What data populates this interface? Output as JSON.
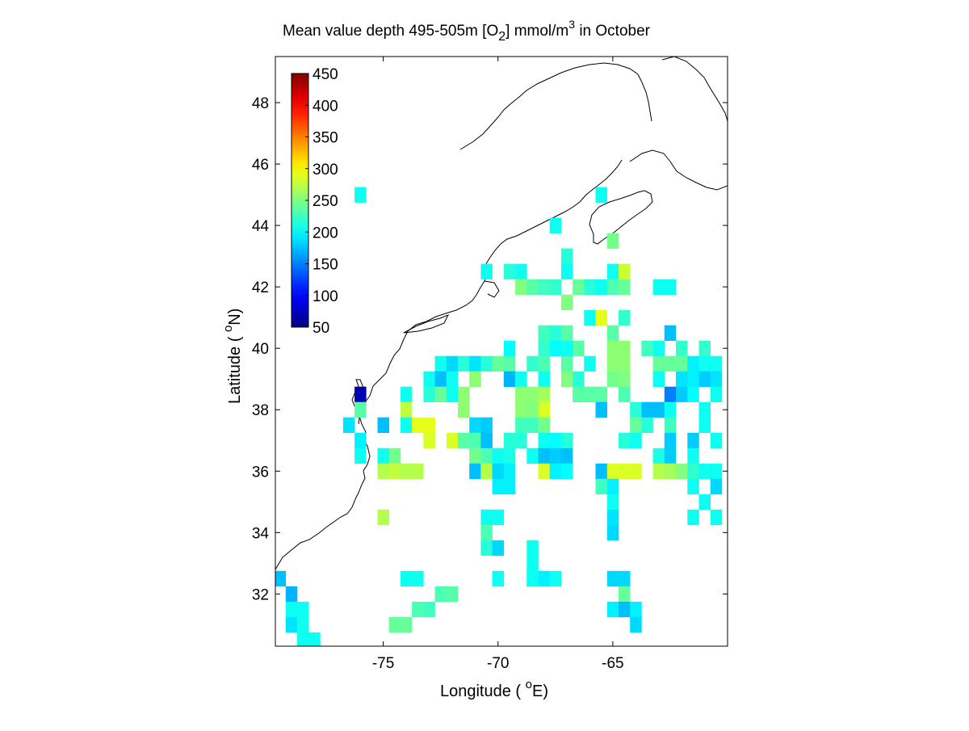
{
  "chart_data": {
    "type": "heatmap",
    "title": {
      "main": "Mean value depth 495-505m [O",
      "sub": "2",
      "unit_pre": "] mmol/m",
      "sup": "3",
      "unit_post": " in October"
    },
    "xlabel": {
      "pre": "Longitude ( ",
      "deg": "o",
      "post": "E)"
    },
    "ylabel": {
      "pre": "Latitude ( ",
      "deg": "o",
      "post": "N)"
    },
    "xlim": [
      -79.7,
      -60
    ],
    "ylim": [
      30.3,
      49.5
    ],
    "xticks": [
      -75,
      -70,
      -65
    ],
    "yticks": [
      32,
      34,
      36,
      38,
      40,
      42,
      44,
      46,
      48
    ],
    "grid": false,
    "cell_size_deg": [
      0.5,
      0.5
    ],
    "colorbar": {
      "placement": "top-left",
      "clim": [
        50,
        450
      ],
      "ticks": [
        50,
        100,
        150,
        200,
        250,
        300,
        350,
        400,
        450
      ],
      "colormap": "jet"
    },
    "cells": [
      [
        -79.5,
        32.5,
        175
      ],
      [
        -79.0,
        32.0,
        170
      ],
      [
        -79.0,
        31.5,
        205
      ],
      [
        -79.0,
        31.0,
        190
      ],
      [
        -78.5,
        31.5,
        205
      ],
      [
        -78.5,
        31.0,
        205
      ],
      [
        -78.5,
        30.5,
        205
      ],
      [
        -78.0,
        30.5,
        205
      ],
      [
        -76.0,
        45.0,
        205
      ],
      [
        -65.5,
        45.0,
        205
      ],
      [
        -65.0,
        43.5,
        245
      ],
      [
        -67.5,
        44.0,
        205
      ],
      [
        -67.0,
        43.0,
        215
      ],
      [
        -70.5,
        42.5,
        205
      ],
      [
        -69.5,
        42.5,
        215
      ],
      [
        -69.0,
        42.5,
        205
      ],
      [
        -67.0,
        42.5,
        205
      ],
      [
        -65.0,
        42.5,
        205
      ],
      [
        -64.5,
        42.5,
        280
      ],
      [
        -69.0,
        42.0,
        250
      ],
      [
        -68.5,
        42.0,
        235
      ],
      [
        -68.0,
        42.0,
        225
      ],
      [
        -67.5,
        42.0,
        220
      ],
      [
        -66.5,
        42.0,
        240
      ],
      [
        -66.0,
        42.0,
        215
      ],
      [
        -65.5,
        42.0,
        205
      ],
      [
        -65.0,
        42.0,
        230
      ],
      [
        -64.5,
        42.0,
        240
      ],
      [
        -63.0,
        42.0,
        205
      ],
      [
        -62.5,
        42.0,
        205
      ],
      [
        -67.0,
        41.5,
        250
      ],
      [
        -66.0,
        41.0,
        205
      ],
      [
        -65.5,
        41.0,
        290
      ],
      [
        -64.5,
        41.0,
        220
      ],
      [
        -68.0,
        40.5,
        225
      ],
      [
        -67.5,
        40.5,
        215
      ],
      [
        -67.0,
        40.5,
        235
      ],
      [
        -65.0,
        40.5,
        235
      ],
      [
        -62.5,
        40.5,
        175
      ],
      [
        -69.5,
        40.0,
        200
      ],
      [
        -68.0,
        40.0,
        220
      ],
      [
        -67.5,
        40.0,
        200
      ],
      [
        -67.0,
        40.0,
        205
      ],
      [
        -66.5,
        40.0,
        235
      ],
      [
        -65.0,
        40.0,
        255
      ],
      [
        -64.5,
        40.0,
        255
      ],
      [
        -63.5,
        40.0,
        225
      ],
      [
        -63.0,
        40.0,
        205
      ],
      [
        -62.0,
        40.0,
        220
      ],
      [
        -61.0,
        40.0,
        220
      ],
      [
        -70.0,
        39.5,
        240
      ],
      [
        -69.5,
        39.5,
        235
      ],
      [
        -68.5,
        39.5,
        220
      ],
      [
        -68.0,
        39.5,
        230
      ],
      [
        -67.0,
        39.5,
        235
      ],
      [
        -66.0,
        39.5,
        205
      ],
      [
        -65.0,
        39.5,
        255
      ],
      [
        -64.5,
        39.5,
        255
      ],
      [
        -63.0,
        39.5,
        240
      ],
      [
        -62.5,
        39.5,
        240
      ],
      [
        -62.0,
        39.5,
        240
      ],
      [
        -61.5,
        39.5,
        195
      ],
      [
        -61.0,
        39.5,
        205
      ],
      [
        -60.5,
        39.5,
        205
      ],
      [
        -72.5,
        39.5,
        205
      ],
      [
        -72.0,
        39.5,
        185
      ],
      [
        -71.5,
        39.5,
        215
      ],
      [
        -71.0,
        39.5,
        190
      ],
      [
        -70.5,
        39.5,
        215
      ],
      [
        -73.0,
        39.0,
        205
      ],
      [
        -72.5,
        39.0,
        175
      ],
      [
        -72.0,
        39.0,
        205
      ],
      [
        -71.0,
        39.0,
        255
      ],
      [
        -69.5,
        39.0,
        170
      ],
      [
        -69.0,
        39.0,
        205
      ],
      [
        -68.0,
        39.0,
        205
      ],
      [
        -67.0,
        39.0,
        250
      ],
      [
        -66.5,
        39.0,
        215
      ],
      [
        -65.0,
        39.0,
        245
      ],
      [
        -64.5,
        39.0,
        250
      ],
      [
        -63.0,
        39.0,
        205
      ],
      [
        -62.0,
        39.0,
        190
      ],
      [
        -61.5,
        39.0,
        195
      ],
      [
        -61.0,
        39.0,
        180
      ],
      [
        -60.5,
        39.0,
        190
      ],
      [
        -74.0,
        38.5,
        205
      ],
      [
        -73.0,
        38.5,
        215
      ],
      [
        -72.5,
        38.5,
        240
      ],
      [
        -72.0,
        38.5,
        205
      ],
      [
        -71.5,
        38.5,
        255
      ],
      [
        -69.0,
        38.5,
        255
      ],
      [
        -68.5,
        38.5,
        255
      ],
      [
        -68.0,
        38.5,
        265
      ],
      [
        -66.5,
        38.5,
        235
      ],
      [
        -66.0,
        38.5,
        235
      ],
      [
        -65.5,
        38.5,
        235
      ],
      [
        -64.5,
        38.5,
        230
      ],
      [
        -62.5,
        38.5,
        150
      ],
      [
        -62.0,
        38.5,
        180
      ],
      [
        -61.5,
        38.5,
        200
      ],
      [
        -60.5,
        38.5,
        205
      ],
      [
        -74.0,
        38.0,
        275
      ],
      [
        -71.5,
        38.0,
        255
      ],
      [
        -69.0,
        38.0,
        255
      ],
      [
        -68.5,
        38.0,
        250
      ],
      [
        -68.0,
        38.0,
        285
      ],
      [
        -65.5,
        38.0,
        175
      ],
      [
        -64.0,
        38.0,
        215
      ],
      [
        -63.5,
        38.0,
        175
      ],
      [
        -63.0,
        38.0,
        175
      ],
      [
        -62.5,
        38.0,
        205
      ],
      [
        -61.0,
        38.0,
        205
      ],
      [
        -75.0,
        37.5,
        175
      ],
      [
        -74.0,
        37.5,
        205
      ],
      [
        -73.5,
        37.5,
        290
      ],
      [
        -73.0,
        37.5,
        290
      ],
      [
        -71.0,
        37.5,
        185
      ],
      [
        -70.5,
        37.5,
        180
      ],
      [
        -69.0,
        37.5,
        225
      ],
      [
        -68.5,
        37.5,
        225
      ],
      [
        -68.0,
        37.5,
        245
      ],
      [
        -64.0,
        37.5,
        240
      ],
      [
        -63.5,
        37.5,
        215
      ],
      [
        -62.5,
        37.5,
        225
      ],
      [
        -61.0,
        37.5,
        205
      ],
      [
        -73.0,
        37.0,
        285
      ],
      [
        -72.0,
        37.0,
        285
      ],
      [
        -71.5,
        37.0,
        235
      ],
      [
        -71.0,
        37.0,
        230
      ],
      [
        -70.5,
        37.0,
        175
      ],
      [
        -69.5,
        37.0,
        215
      ],
      [
        -69.0,
        37.0,
        215
      ],
      [
        -68.0,
        37.0,
        205
      ],
      [
        -67.5,
        37.0,
        200
      ],
      [
        -67.0,
        37.0,
        215
      ],
      [
        -64.5,
        37.0,
        215
      ],
      [
        -64.0,
        37.0,
        205
      ],
      [
        -62.5,
        37.0,
        180
      ],
      [
        -61.5,
        37.0,
        180
      ],
      [
        -60.5,
        37.0,
        205
      ],
      [
        -76.0,
        36.5,
        205
      ],
      [
        -75.0,
        36.5,
        205
      ],
      [
        -74.5,
        36.5,
        245
      ],
      [
        -71.0,
        36.5,
        245
      ],
      [
        -70.5,
        36.5,
        230
      ],
      [
        -70.0,
        36.5,
        205
      ],
      [
        -69.5,
        36.5,
        210
      ],
      [
        -68.5,
        36.5,
        205
      ],
      [
        -68.0,
        36.5,
        175
      ],
      [
        -67.5,
        36.5,
        180
      ],
      [
        -67.0,
        36.5,
        175
      ],
      [
        -63.0,
        36.5,
        210
      ],
      [
        -62.5,
        36.5,
        180
      ],
      [
        -61.5,
        36.5,
        205
      ],
      [
        -75.0,
        36.0,
        270
      ],
      [
        -74.5,
        36.0,
        275
      ],
      [
        -74.0,
        36.0,
        270
      ],
      [
        -73.5,
        36.0,
        270
      ],
      [
        -71.0,
        36.0,
        175
      ],
      [
        -70.5,
        36.0,
        270
      ],
      [
        -70.0,
        36.0,
        185
      ],
      [
        -69.5,
        36.0,
        195
      ],
      [
        -68.0,
        36.0,
        285
      ],
      [
        -67.5,
        36.0,
        195
      ],
      [
        -67.0,
        36.0,
        200
      ],
      [
        -65.5,
        36.0,
        175
      ],
      [
        -65.0,
        36.0,
        285
      ],
      [
        -64.5,
        36.0,
        285
      ],
      [
        -64.0,
        36.0,
        285
      ],
      [
        -63.0,
        36.0,
        270
      ],
      [
        -62.5,
        36.0,
        265
      ],
      [
        -62.0,
        36.0,
        250
      ],
      [
        -61.5,
        36.0,
        220
      ],
      [
        -61.0,
        36.0,
        205
      ],
      [
        -60.5,
        36.0,
        205
      ],
      [
        -70.0,
        35.5,
        195
      ],
      [
        -69.5,
        35.5,
        195
      ],
      [
        -65.5,
        35.5,
        225
      ],
      [
        -65.0,
        35.5,
        195
      ],
      [
        -61.5,
        35.5,
        205
      ],
      [
        -60.5,
        35.5,
        185
      ],
      [
        -65.0,
        35.0,
        205
      ],
      [
        -61.0,
        35.0,
        205
      ],
      [
        -61.5,
        34.5,
        205
      ],
      [
        -60.5,
        34.5,
        205
      ],
      [
        -75.0,
        34.5,
        270
      ],
      [
        -70.5,
        34.5,
        205
      ],
      [
        -70.0,
        34.5,
        205
      ],
      [
        -65.0,
        34.5,
        190
      ],
      [
        -70.5,
        34.0,
        230
      ],
      [
        -65.0,
        34.0,
        185
      ],
      [
        -70.5,
        33.5,
        215
      ],
      [
        -70.0,
        33.5,
        185
      ],
      [
        -68.5,
        33.5,
        205
      ],
      [
        -68.5,
        33.0,
        205
      ],
      [
        -68.5,
        32.5,
        215
      ],
      [
        -68.0,
        32.5,
        205
      ],
      [
        -74.0,
        32.5,
        205
      ],
      [
        -73.5,
        32.5,
        205
      ],
      [
        -70.0,
        32.5,
        205
      ],
      [
        -68.5,
        32.5,
        205
      ],
      [
        -68.0,
        32.5,
        195
      ],
      [
        -67.5,
        32.5,
        205
      ],
      [
        -65.0,
        32.5,
        185
      ],
      [
        -64.5,
        32.5,
        185
      ],
      [
        -72.5,
        32.0,
        230
      ],
      [
        -72.0,
        32.0,
        235
      ],
      [
        -64.5,
        32.0,
        240
      ],
      [
        -73.0,
        31.5,
        225
      ],
      [
        -73.5,
        31.5,
        230
      ],
      [
        -65.0,
        31.5,
        195
      ],
      [
        -64.5,
        31.5,
        175
      ],
      [
        -64.0,
        31.5,
        195
      ],
      [
        -74.5,
        31.0,
        240
      ],
      [
        -74.0,
        31.0,
        240
      ],
      [
        -64.0,
        31.0,
        185
      ],
      [
        -76.0,
        38.5,
        70
      ],
      [
        -76.0,
        38.0,
        235
      ],
      [
        -76.5,
        37.5,
        190
      ],
      [
        -76.0,
        37.0,
        195
      ]
    ]
  }
}
